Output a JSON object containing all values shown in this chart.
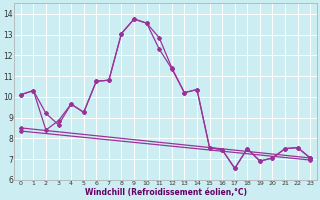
{
  "line1_x": [
    0,
    1,
    2,
    3,
    4,
    5,
    6,
    7,
    8,
    9,
    10,
    11,
    12,
    13,
    14,
    15,
    16,
    17,
    18,
    19,
    20,
    21,
    22,
    23
  ],
  "line1_y": [
    10.1,
    10.3,
    9.2,
    8.65,
    9.65,
    9.25,
    10.75,
    10.8,
    13.05,
    13.75,
    13.55,
    12.85,
    11.4,
    10.2,
    10.35,
    7.55,
    7.45,
    6.55,
    7.5,
    6.9,
    7.05,
    7.5,
    7.55,
    7.05
  ],
  "line2_x": [
    0,
    1,
    2,
    3,
    4,
    5,
    6,
    7,
    8,
    9,
    10,
    11,
    12,
    13,
    14,
    15,
    16,
    17,
    18,
    19,
    20,
    21,
    22,
    23
  ],
  "line2_y": [
    10.1,
    10.3,
    8.4,
    8.85,
    9.65,
    9.25,
    10.75,
    10.8,
    13.05,
    13.75,
    13.55,
    12.3,
    11.35,
    10.2,
    10.35,
    7.55,
    7.45,
    6.55,
    7.5,
    6.9,
    7.05,
    7.5,
    7.55,
    7.05
  ],
  "line3_x": [
    0,
    23
  ],
  "line3_y": [
    8.5,
    7.05
  ],
  "line4_x": [
    0,
    23
  ],
  "line4_y": [
    8.35,
    6.95
  ],
  "color": "#993399",
  "background_color": "#cceef2",
  "grid_color": "#ffffff",
  "xlabel": "Windchill (Refroidissement éolien,°C)",
  "ylim": [
    6,
    14.5
  ],
  "xlim": [
    -0.5,
    23.5
  ],
  "yticks": [
    6,
    7,
    8,
    9,
    10,
    11,
    12,
    13,
    14
  ],
  "xticks": [
    0,
    1,
    2,
    3,
    4,
    5,
    6,
    7,
    8,
    9,
    10,
    11,
    12,
    13,
    14,
    15,
    16,
    17,
    18,
    19,
    20,
    21,
    22,
    23
  ]
}
